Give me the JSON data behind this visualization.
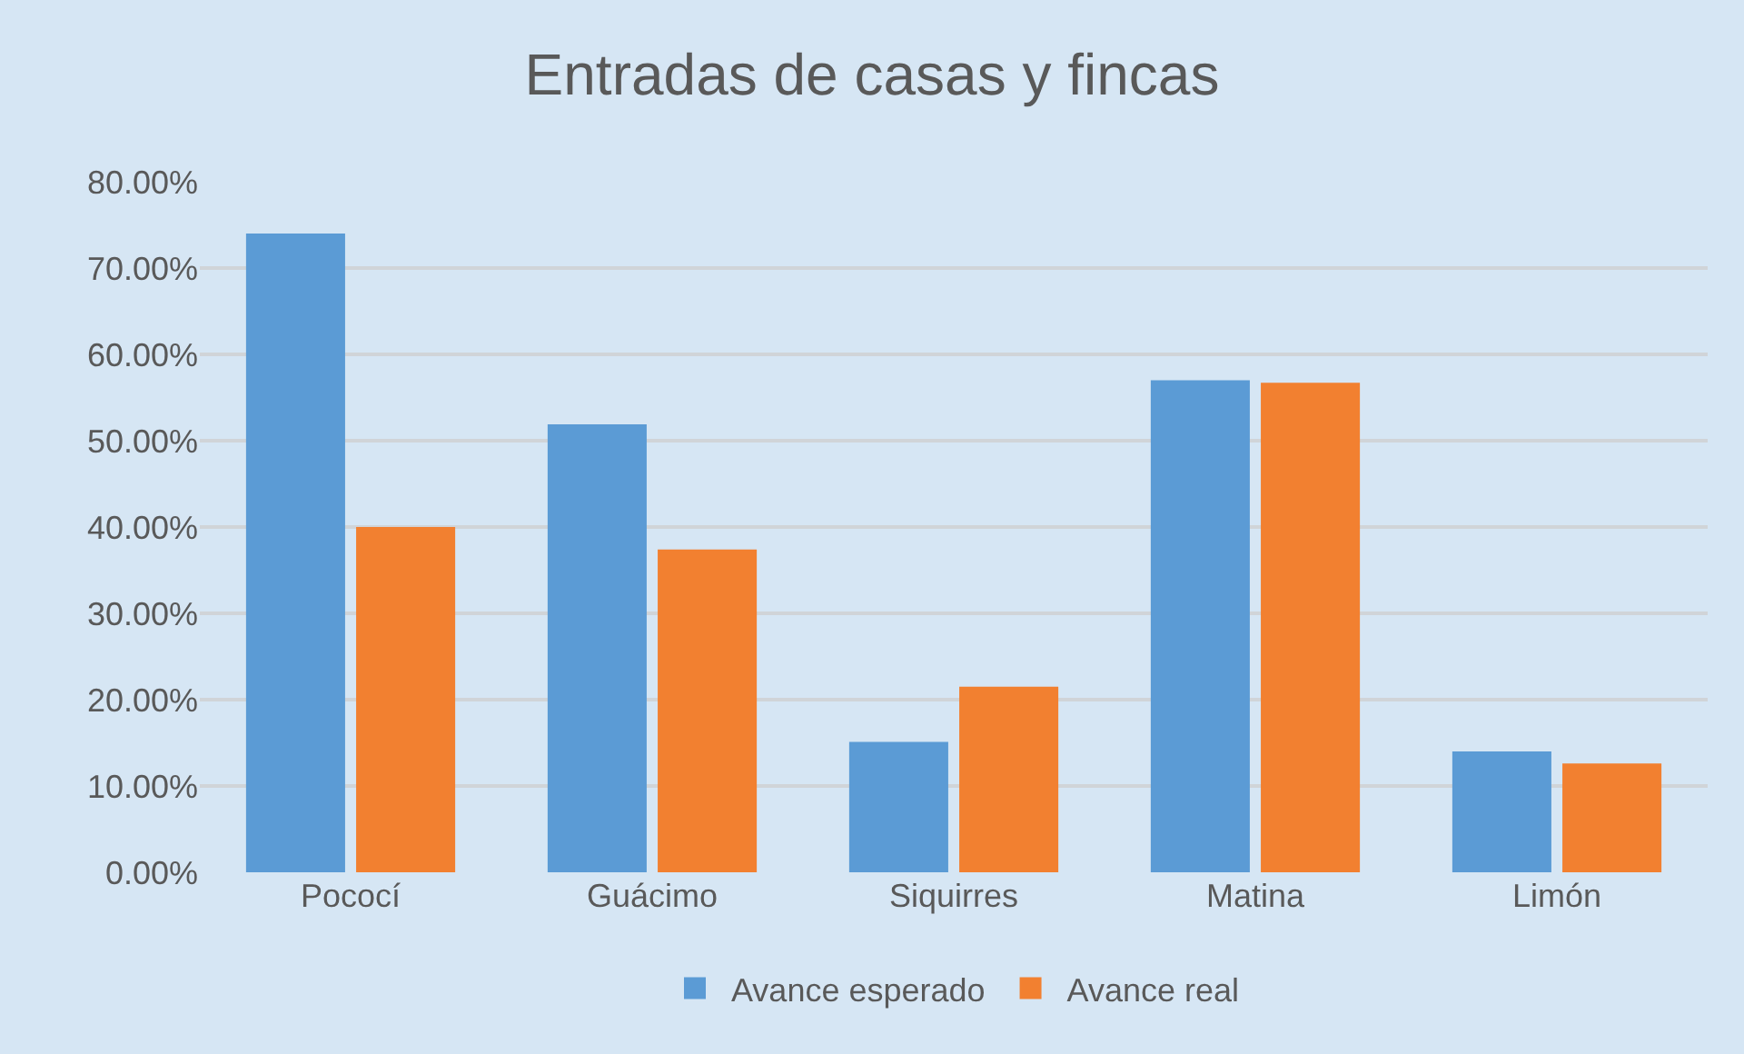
{
  "chart_data": {
    "type": "bar",
    "title": "Entradas de casas y fincas",
    "categories": [
      "Pococí",
      "Guácimo",
      "Siquirres",
      "Matina",
      "Limón"
    ],
    "series": [
      {
        "name": "Avance esperado",
        "color": "#5b9bd5",
        "values": [
          74.0,
          51.9,
          15.1,
          57.0,
          14.0
        ]
      },
      {
        "name": "Avance real",
        "color": "#f28030",
        "values": [
          40.0,
          37.4,
          21.5,
          56.7,
          12.6
        ]
      }
    ],
    "ylim": [
      0,
      80
    ],
    "yticks": [
      {
        "value": 0,
        "label": "0.00%"
      },
      {
        "value": 10,
        "label": "10.00%"
      },
      {
        "value": 20,
        "label": "20.00%"
      },
      {
        "value": 30,
        "label": "30.00%"
      },
      {
        "value": 40,
        "label": "40.00%"
      },
      {
        "value": 50,
        "label": "50.00%"
      },
      {
        "value": 60,
        "label": "60.00%"
      },
      {
        "value": 70,
        "label": "70.00%"
      },
      {
        "value": 80,
        "label": "80.00%"
      }
    ],
    "grid": "y",
    "legend": "bottom"
  }
}
